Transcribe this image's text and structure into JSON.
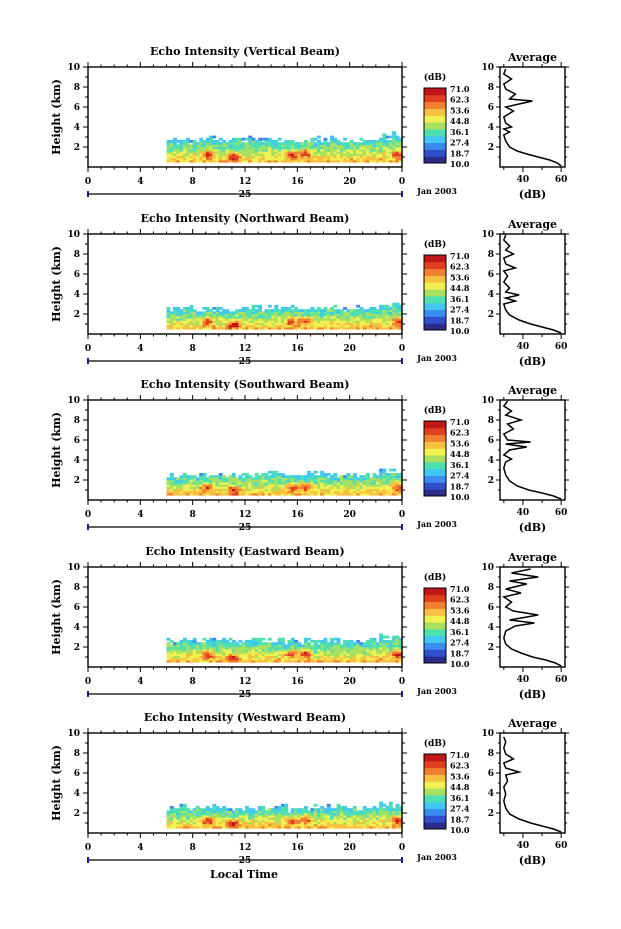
{
  "colorbar_unit": "(dB)",
  "colorbar_levels": [
    "71.0",
    "62.3",
    "53.6",
    "44.8",
    "36.1",
    "27.4",
    "18.7",
    "10.0"
  ],
  "colorbar_colors": [
    "#2b2b8c",
    "#2f4fcc",
    "#3a8cf0",
    "#40c8f0",
    "#4ee0b0",
    "#a8e060",
    "#f0f050",
    "#f8c040",
    "#f08030",
    "#e04020",
    "#c01818"
  ],
  "date_label": "Jan 2003",
  "date_day": "25",
  "x_axis_label": "Local Time",
  "chart_data": [
    {
      "type": "heatmap",
      "title": "Echo Intensity (Vertical Beam)",
      "ylabel": "Height (km)",
      "xlim": [
        0,
        24
      ],
      "ylim": [
        0,
        10
      ],
      "xticks": [
        "0",
        "4",
        "8",
        "12",
        "16",
        "20",
        "0"
      ],
      "yticks": [
        "2",
        "4",
        "6",
        "8",
        "10"
      ],
      "echo_time_range": [
        6,
        24
      ],
      "echo_height_range": [
        0.5,
        2.8
      ],
      "echo_max_dB": 71.0,
      "profile": {
        "title": "Average",
        "xlabel": "(dB)",
        "xticks": [
          "40",
          "60"
        ],
        "yticks": [
          "2",
          "4",
          "6",
          "8",
          "10"
        ],
        "xlim": [
          28,
          62
        ],
        "ylim": [
          0,
          10
        ],
        "points": [
          [
            60,
            0.1
          ],
          [
            58,
            0.4
          ],
          [
            54,
            0.7
          ],
          [
            48,
            1.0
          ],
          [
            42,
            1.3
          ],
          [
            37,
            1.6
          ],
          [
            33,
            2.0
          ],
          [
            31,
            2.6
          ],
          [
            30,
            3.2
          ],
          [
            33,
            3.5
          ],
          [
            30,
            3.8
          ],
          [
            34,
            4.0
          ],
          [
            31,
            4.4
          ],
          [
            30,
            5.0
          ],
          [
            35,
            5.6
          ],
          [
            31,
            6.0
          ],
          [
            38,
            6.3
          ],
          [
            45,
            6.6
          ],
          [
            33,
            6.8
          ],
          [
            36,
            7.3
          ],
          [
            31,
            7.8
          ],
          [
            30,
            8.3
          ],
          [
            34,
            8.8
          ],
          [
            30,
            9.3
          ],
          [
            31,
            9.8
          ]
        ]
      }
    },
    {
      "type": "heatmap",
      "title": "Echo Intensity (Northward Beam)",
      "ylabel": "Height (km)",
      "xlim": [
        0,
        24
      ],
      "ylim": [
        0,
        10
      ],
      "xticks": [
        "0",
        "4",
        "8",
        "12",
        "16",
        "20",
        "0"
      ],
      "yticks": [
        "2",
        "4",
        "6",
        "8",
        "10"
      ],
      "echo_time_range": [
        6,
        24
      ],
      "echo_height_range": [
        0.5,
        2.6
      ],
      "echo_max_dB": 71.0,
      "profile": {
        "title": "Average",
        "xlabel": "(dB)",
        "xticks": [
          "40",
          "60"
        ],
        "yticks": [
          "2",
          "4",
          "6",
          "8",
          "10"
        ],
        "xlim": [
          28,
          62
        ],
        "ylim": [
          0,
          10
        ],
        "points": [
          [
            60,
            0.1
          ],
          [
            56,
            0.4
          ],
          [
            50,
            0.7
          ],
          [
            44,
            1.0
          ],
          [
            38,
            1.4
          ],
          [
            33,
            1.9
          ],
          [
            31,
            2.4
          ],
          [
            30,
            3.0
          ],
          [
            36,
            3.3
          ],
          [
            31,
            3.6
          ],
          [
            38,
            3.9
          ],
          [
            31,
            4.2
          ],
          [
            33,
            4.6
          ],
          [
            30,
            5.2
          ],
          [
            32,
            5.8
          ],
          [
            30,
            6.3
          ],
          [
            36,
            6.6
          ],
          [
            31,
            7.0
          ],
          [
            30,
            7.6
          ],
          [
            35,
            8.0
          ],
          [
            31,
            8.4
          ],
          [
            33,
            8.8
          ],
          [
            30,
            9.4
          ],
          [
            31,
            9.9
          ]
        ]
      }
    },
    {
      "type": "heatmap",
      "title": "Echo Intensity (Southward Beam)",
      "ylabel": "Height (km)",
      "xlim": [
        0,
        24
      ],
      "ylim": [
        0,
        10
      ],
      "xticks": [
        "0",
        "4",
        "8",
        "12",
        "16",
        "20",
        "0"
      ],
      "yticks": [
        "2",
        "4",
        "6",
        "8",
        "10"
      ],
      "echo_time_range": [
        6,
        24
      ],
      "echo_height_range": [
        0.5,
        2.6
      ],
      "echo_max_dB": 71.0,
      "profile": {
        "title": "Average",
        "xlabel": "(dB)",
        "xticks": [
          "40",
          "60"
        ],
        "yticks": [
          "2",
          "4",
          "6",
          "8",
          "10"
        ],
        "xlim": [
          28,
          62
        ],
        "ylim": [
          0,
          10
        ],
        "points": [
          [
            60,
            0.1
          ],
          [
            56,
            0.4
          ],
          [
            50,
            0.7
          ],
          [
            43,
            1.0
          ],
          [
            37,
            1.4
          ],
          [
            33,
            1.9
          ],
          [
            31,
            2.5
          ],
          [
            30,
            3.2
          ],
          [
            31,
            3.8
          ],
          [
            34,
            4.1
          ],
          [
            30,
            4.5
          ],
          [
            33,
            5.0
          ],
          [
            42,
            5.3
          ],
          [
            31,
            5.6
          ],
          [
            44,
            5.8
          ],
          [
            32,
            6.0
          ],
          [
            30,
            6.6
          ],
          [
            35,
            7.1
          ],
          [
            32,
            7.6
          ],
          [
            39,
            8.0
          ],
          [
            31,
            8.5
          ],
          [
            34,
            8.9
          ],
          [
            30,
            9.4
          ],
          [
            32,
            9.9
          ]
        ]
      }
    },
    {
      "type": "heatmap",
      "title": "Echo Intensity (Eastward Beam)",
      "ylabel": "Height (km)",
      "xlim": [
        0,
        24
      ],
      "ylim": [
        0,
        10
      ],
      "xticks": [
        "0",
        "4",
        "8",
        "12",
        "16",
        "20",
        "0"
      ],
      "yticks": [
        "2",
        "4",
        "6",
        "8",
        "10"
      ],
      "echo_time_range": [
        6,
        24
      ],
      "echo_height_range": [
        0.5,
        2.7
      ],
      "echo_max_dB": 71.0,
      "profile": {
        "title": "Average",
        "xlabel": "(dB)",
        "xticks": [
          "40",
          "60"
        ],
        "yticks": [
          "2",
          "4",
          "6",
          "8",
          "10"
        ],
        "xlim": [
          28,
          62
        ],
        "ylim": [
          0,
          10
        ],
        "points": [
          [
            60,
            0.1
          ],
          [
            57,
            0.4
          ],
          [
            52,
            0.7
          ],
          [
            45,
            1.0
          ],
          [
            39,
            1.4
          ],
          [
            34,
            1.8
          ],
          [
            31,
            2.3
          ],
          [
            30,
            2.9
          ],
          [
            31,
            3.6
          ],
          [
            36,
            4.1
          ],
          [
            46,
            4.4
          ],
          [
            33,
            4.7
          ],
          [
            48,
            5.2
          ],
          [
            35,
            5.6
          ],
          [
            31,
            6.0
          ],
          [
            34,
            6.5
          ],
          [
            30,
            7.0
          ],
          [
            39,
            7.4
          ],
          [
            31,
            7.8
          ],
          [
            42,
            8.3
          ],
          [
            33,
            8.6
          ],
          [
            48,
            9.0
          ],
          [
            34,
            9.4
          ],
          [
            44,
            9.8
          ]
        ]
      }
    },
    {
      "type": "heatmap",
      "title": "Echo Intensity (Westward Beam)",
      "ylabel": "Height (km)",
      "xlim": [
        0,
        24
      ],
      "ylim": [
        0,
        10
      ],
      "xticks": [
        "0",
        "4",
        "8",
        "12",
        "16",
        "20",
        "0"
      ],
      "yticks": [
        "2",
        "4",
        "6",
        "8",
        "10"
      ],
      "echo_time_range": [
        6,
        24
      ],
      "echo_height_range": [
        0.5,
        2.6
      ],
      "echo_max_dB": 71.0,
      "profile": {
        "title": "Average",
        "xlabel": "(dB)",
        "xticks": [
          "40",
          "60"
        ],
        "yticks": [
          "2",
          "4",
          "6",
          "8",
          "10"
        ],
        "xlim": [
          28,
          62
        ],
        "ylim": [
          0,
          10
        ],
        "points": [
          [
            60,
            0.1
          ],
          [
            56,
            0.4
          ],
          [
            50,
            0.7
          ],
          [
            44,
            1.0
          ],
          [
            38,
            1.4
          ],
          [
            33,
            1.9
          ],
          [
            31,
            2.5
          ],
          [
            30,
            3.2
          ],
          [
            31,
            3.9
          ],
          [
            30,
            4.6
          ],
          [
            32,
            5.2
          ],
          [
            31,
            5.8
          ],
          [
            38,
            6.1
          ],
          [
            31,
            6.5
          ],
          [
            30,
            7.0
          ],
          [
            35,
            7.4
          ],
          [
            31,
            7.9
          ],
          [
            30,
            8.5
          ],
          [
            31,
            9.1
          ],
          [
            30,
            9.6
          ]
        ]
      }
    }
  ]
}
